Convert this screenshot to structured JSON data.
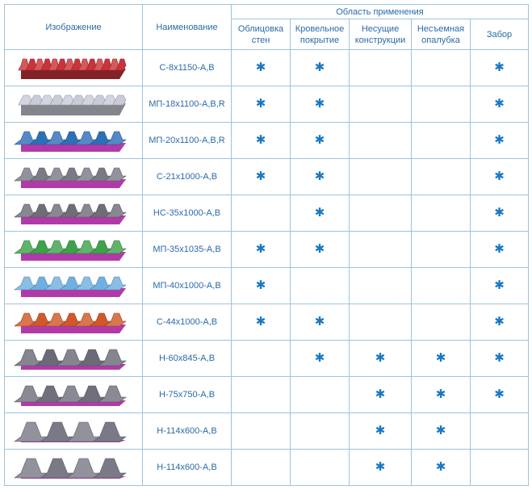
{
  "headers": {
    "image": "Изображение",
    "name": "Наименование",
    "area_group": "Область применения",
    "areas": [
      {
        "key": "wall",
        "line1": "Облицовка",
        "line2": "стен"
      },
      {
        "key": "roof",
        "line1": "Кровельное",
        "line2": "покрытие"
      },
      {
        "key": "bearing",
        "line1": "Несущие",
        "line2": "конструкции"
      },
      {
        "key": "formwork",
        "line1": "Несъемная",
        "line2": "опалубка"
      },
      {
        "key": "fence",
        "line1": "Забор",
        "line2": ""
      }
    ]
  },
  "mark": "✱",
  "rows": [
    {
      "name": "С-8х1150-А,В",
      "marks": [
        true,
        true,
        false,
        false,
        true
      ],
      "color": "#c9343a",
      "profile": "wave"
    },
    {
      "name": "МП-18х1100-А,В,R",
      "marks": [
        true,
        true,
        false,
        false,
        true
      ],
      "color": "#c8ccd8",
      "profile": "ribs"
    },
    {
      "name": "МП-20х1100-А,В,R",
      "marks": [
        true,
        true,
        false,
        false,
        true
      ],
      "color": "#2e6fb8",
      "profile": "trap"
    },
    {
      "name": "С-21х1000-А,В",
      "marks": [
        true,
        true,
        false,
        false,
        true
      ],
      "color": "#7a7a86",
      "profile": "trap"
    },
    {
      "name": "НС-35х1000-А,В",
      "marks": [
        false,
        true,
        false,
        false,
        true
      ],
      "color": "#6e6e7a",
      "profile": "trap"
    },
    {
      "name": "МП-35х1035-А,В",
      "marks": [
        true,
        true,
        false,
        false,
        true
      ],
      "color": "#3da24a",
      "profile": "trap"
    },
    {
      "name": "МП-40х1000-А,В",
      "marks": [
        true,
        false,
        false,
        false,
        true
      ],
      "color": "#6fb0e0",
      "profile": "trap"
    },
    {
      "name": "С-44х1000-А,В",
      "marks": [
        true,
        true,
        false,
        false,
        true
      ],
      "color": "#d0582a",
      "profile": "trap"
    },
    {
      "name": "Н-60х845-А,В",
      "marks": [
        false,
        true,
        true,
        true,
        true
      ],
      "color": "#6a6a78",
      "profile": "deep"
    },
    {
      "name": "Н-75х750-А,В",
      "marks": [
        false,
        false,
        true,
        true,
        true
      ],
      "color": "#70707c",
      "profile": "deep"
    },
    {
      "name": "Н-114х600-А,В",
      "marks": [
        false,
        false,
        true,
        true,
        false
      ],
      "color": "#7a7a86",
      "profile": "deepest"
    },
    {
      "name": "Н-114х600-А,В",
      "marks": [
        false,
        false,
        true,
        true,
        false
      ],
      "color": "#7a7a86",
      "profile": "deepest"
    }
  ],
  "colors": {
    "border": "#9ec3dc",
    "text": "#2a6aa8",
    "mark": "#1a78c2",
    "underside": "#b23aa8"
  }
}
